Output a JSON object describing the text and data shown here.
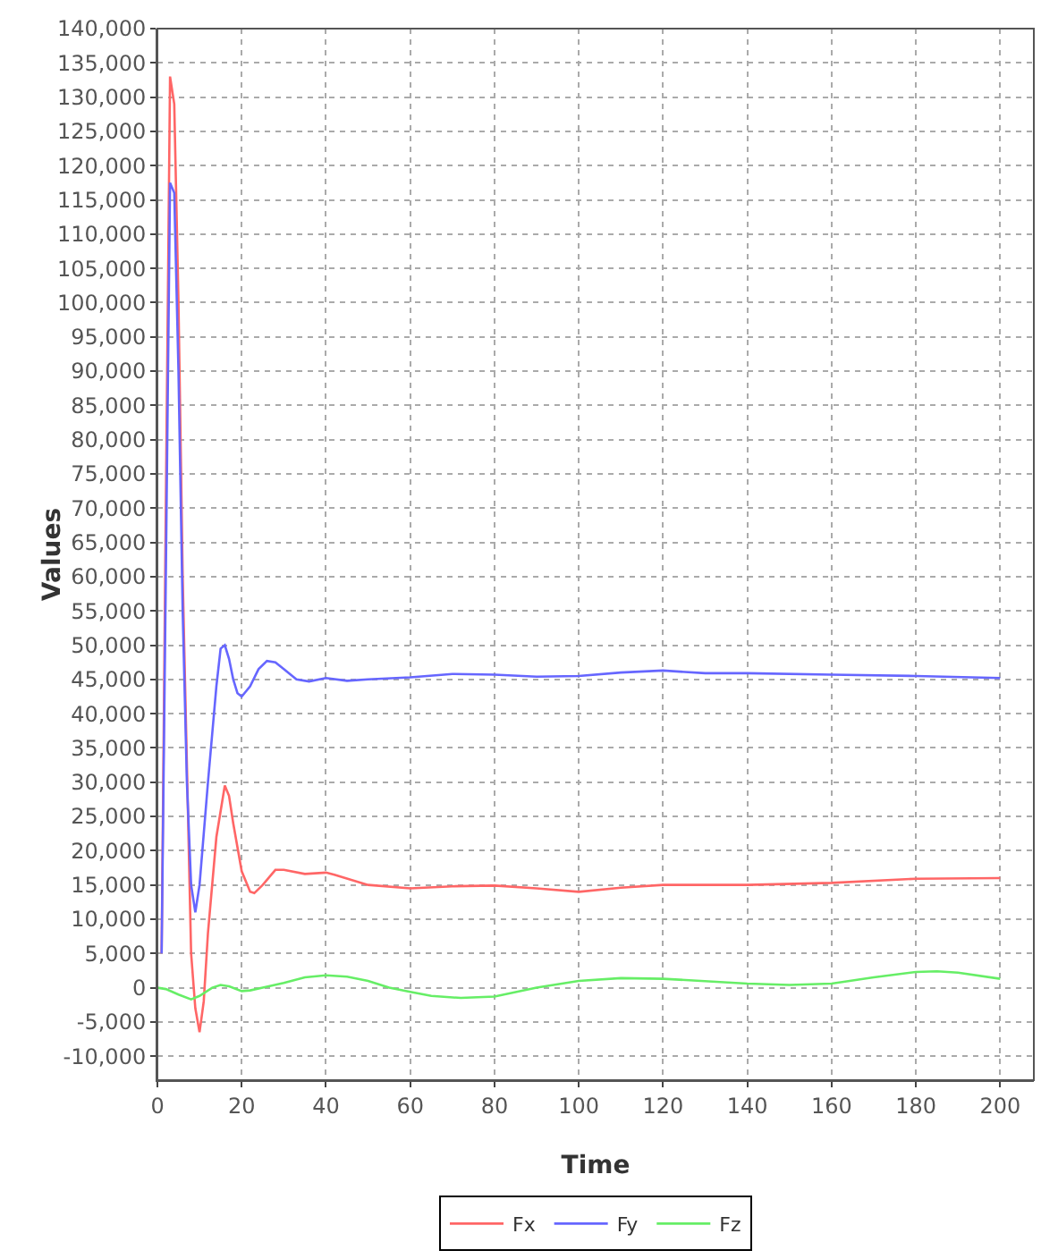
{
  "chart_data": {
    "type": "line",
    "xlabel": "Time",
    "ylabel": "Values",
    "xlim": [
      0,
      208
    ],
    "xticks": [
      0,
      20,
      40,
      60,
      80,
      100,
      120,
      140,
      160,
      180,
      200
    ],
    "ylim": [
      -13500,
      140000
    ],
    "yticks": [
      {
        "value": -10000,
        "label": "-10,000"
      },
      {
        "value": -5000,
        "label": "-5,000"
      },
      0,
      {
        "value": 5000,
        "label": "5,000"
      },
      {
        "value": 10000,
        "label": "10,000"
      },
      {
        "value": 15000,
        "label": "15,000"
      },
      {
        "value": 20000,
        "label": "20,000"
      },
      {
        "value": 25000,
        "label": "25,000"
      },
      {
        "value": 30000,
        "label": "30,000"
      },
      {
        "value": 35000,
        "label": "35,000"
      },
      {
        "value": 40000,
        "label": "40,000"
      },
      {
        "value": 45000,
        "label": "45,000"
      },
      {
        "value": 50000,
        "label": "50,000"
      },
      {
        "value": 55000,
        "label": "55,000"
      },
      {
        "value": 60000,
        "label": "60,000"
      },
      {
        "value": 65000,
        "label": "65,000"
      },
      {
        "value": 70000,
        "label": "70,000"
      },
      {
        "value": 75000,
        "label": "75,000"
      },
      {
        "value": 80000,
        "label": "80,000"
      },
      {
        "value": 85000,
        "label": "85,000"
      },
      {
        "value": 90000,
        "label": "90,000"
      },
      {
        "value": 95000,
        "label": "95,000"
      },
      {
        "value": 100000,
        "label": "100,000"
      },
      {
        "value": 105000,
        "label": "105,000"
      },
      {
        "value": 110000,
        "label": "110,000"
      },
      {
        "value": 115000,
        "label": "115,000"
      },
      {
        "value": 120000,
        "label": "120,000"
      },
      {
        "value": 125000,
        "label": "125,000"
      },
      {
        "value": 130000,
        "label": "130,000"
      },
      {
        "value": 135000,
        "label": "135,000"
      },
      {
        "value": 140000,
        "label": "140,000"
      }
    ],
    "grid": true,
    "legend": "bottom",
    "marker": "none",
    "line_style": "solid",
    "series": [
      {
        "name": "Fx",
        "color": "#ff6666",
        "x": [
          1,
          2,
          3,
          4,
          5,
          6,
          8,
          9,
          10,
          11,
          12,
          14,
          16,
          17,
          18,
          20,
          22,
          23,
          25,
          28,
          30,
          35,
          40,
          42,
          50,
          60,
          70,
          80,
          90,
          100,
          110,
          120,
          140,
          160,
          180,
          200
        ],
        "values": [
          5000,
          70000,
          133000,
          129000,
          100000,
          60000,
          5000,
          -3000,
          -6500,
          -2000,
          8000,
          22000,
          29500,
          28000,
          24000,
          17000,
          14000,
          13800,
          15000,
          17200,
          17200,
          16600,
          16800,
          16500,
          15000,
          14500,
          14800,
          14900,
          14500,
          14000,
          14600,
          15000,
          15000,
          15300,
          15900,
          16000
        ]
      },
      {
        "name": "Fy",
        "color": "#6666ff",
        "x": [
          1,
          2,
          3,
          4,
          5,
          6,
          7,
          8,
          9,
          10,
          12,
          14,
          15,
          16,
          17,
          18,
          19,
          20,
          22,
          24,
          26,
          28,
          30,
          33,
          36,
          40,
          45,
          50,
          60,
          70,
          80,
          90,
          100,
          110,
          120,
          130,
          140,
          160,
          180,
          200
        ],
        "values": [
          5000,
          60000,
          117500,
          116000,
          90000,
          55000,
          30000,
          15000,
          11000,
          15000,
          30000,
          44000,
          49500,
          50000,
          48000,
          45000,
          43000,
          42500,
          44000,
          46500,
          47700,
          47500,
          46500,
          45000,
          44700,
          45200,
          44800,
          45000,
          45300,
          45800,
          45700,
          45400,
          45500,
          46000,
          46300,
          45900,
          45900,
          45700,
          45500,
          45200
        ]
      },
      {
        "name": "Fz",
        "color": "#66ee66",
        "x": [
          0,
          2,
          5,
          8,
          10,
          13,
          15,
          17,
          20,
          22,
          25,
          30,
          35,
          40,
          45,
          50,
          55,
          60,
          65,
          72,
          80,
          90,
          100,
          110,
          120,
          140,
          150,
          160,
          170,
          180,
          185,
          190,
          200
        ],
        "values": [
          0,
          -200,
          -1000,
          -1700,
          -1200,
          0,
          400,
          200,
          -500,
          -400,
          0,
          700,
          1500,
          1800,
          1600,
          1000,
          0,
          -600,
          -1200,
          -1500,
          -1300,
          0,
          1000,
          1400,
          1300,
          600,
          400,
          600,
          1500,
          2300,
          2400,
          2200,
          1300
        ]
      }
    ]
  }
}
